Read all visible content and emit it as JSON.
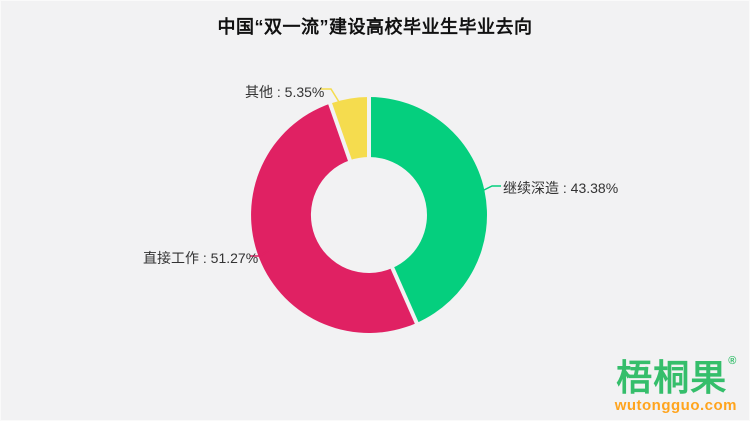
{
  "title": "中国“双一流”建设高校毕业生毕业去向",
  "chart_data": {
    "type": "pie",
    "variant": "donut",
    "unit": "%",
    "start_angle": "top",
    "direction": "clockwise",
    "total": 100,
    "slices": [
      {
        "name": "继续深造",
        "value": 43.38,
        "display_label": "继续深造 : 43.38%",
        "color": "#05CF7E"
      },
      {
        "name": "直接工作",
        "value": 51.27,
        "display_label": "直接工作 : 51.27%",
        "color": "#E02163"
      },
      {
        "name": "其他",
        "value": 5.35,
        "display_label": "其他 : 5.35%",
        "color": "#F5DC4E"
      }
    ]
  },
  "watermark": {
    "brand": "梧桐果",
    "registered_mark": "®",
    "site": "wutongguo.com"
  },
  "colors": {
    "background": "#F2F2F3",
    "label_text": "#333333",
    "title_text": "#111111",
    "logo_green": "#35BE6B",
    "logo_orange": "#FFA41D"
  }
}
